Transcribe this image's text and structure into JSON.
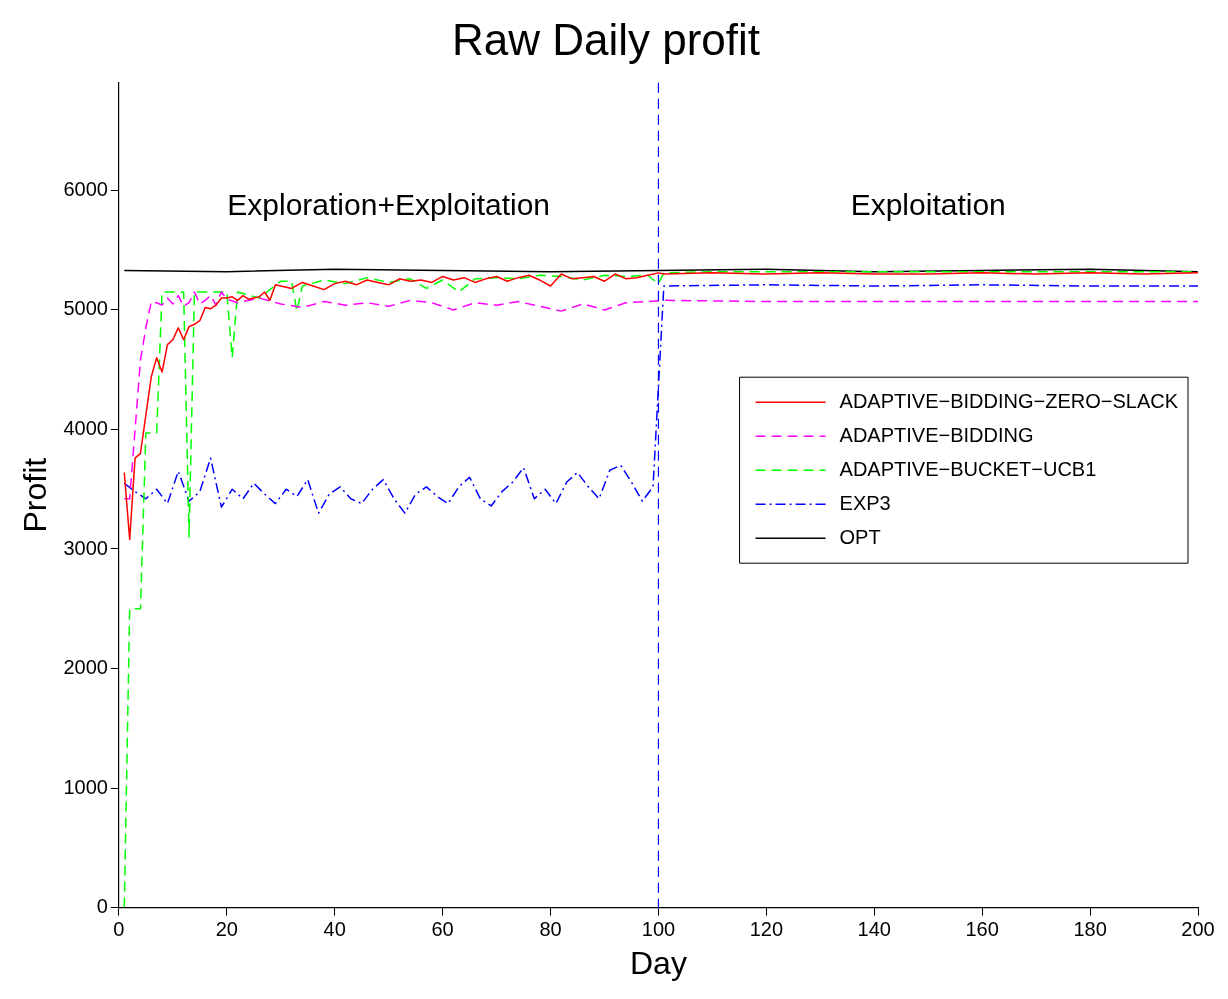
{
  "chart_data": {
    "type": "line",
    "title": "Raw Daily profit",
    "xlabel": "Day",
    "ylabel": "Profit",
    "xlim": [
      0,
      200
    ],
    "xticks": [
      0,
      20,
      40,
      60,
      80,
      100,
      120,
      140,
      160,
      180,
      200
    ],
    "ylim": [
      0,
      6900
    ],
    "yticks": [
      0,
      1000,
      2000,
      3000,
      4000,
      5000,
      6000
    ],
    "grid": false,
    "legend": "right",
    "marker": "none",
    "ref_lines": [
      {
        "axis": "x",
        "value": 100,
        "color": "#0000ff",
        "line_style": "dashed"
      }
    ],
    "annotations": [
      "Exploration+Exploitation",
      "Exploitation"
    ],
    "series": [
      {
        "name": "ADAPTIVE−BIDDING−ZERO−SLACK",
        "color": "#ff0000",
        "line_style": "solid",
        "x": [
          1,
          2,
          3,
          4,
          5,
          6,
          7,
          8,
          9,
          10,
          11,
          12,
          13,
          14,
          15,
          16,
          17,
          18,
          19,
          20,
          21,
          22,
          23,
          24,
          25,
          26,
          27,
          28,
          29,
          30,
          32,
          34,
          36,
          38,
          40,
          42,
          44,
          46,
          48,
          50,
          52,
          54,
          56,
          58,
          60,
          62,
          64,
          66,
          68,
          70,
          72,
          74,
          76,
          78,
          80,
          82,
          84,
          86,
          88,
          90,
          92,
          94,
          96,
          98,
          100,
          101,
          110,
          120,
          130,
          140,
          150,
          160,
          170,
          180,
          190,
          200
        ],
        "values": [
          3640,
          3080,
          3760,
          3800,
          4120,
          4440,
          4600,
          4480,
          4710,
          4750,
          4850,
          4750,
          4860,
          4880,
          4910,
          5020,
          5010,
          5040,
          5100,
          5100,
          5110,
          5080,
          5120,
          5090,
          5100,
          5110,
          5150,
          5080,
          5210,
          5200,
          5180,
          5230,
          5200,
          5170,
          5220,
          5240,
          5210,
          5250,
          5230,
          5210,
          5260,
          5240,
          5250,
          5230,
          5280,
          5250,
          5270,
          5230,
          5260,
          5280,
          5240,
          5270,
          5290,
          5250,
          5200,
          5300,
          5260,
          5270,
          5280,
          5240,
          5300,
          5260,
          5270,
          5290,
          5310,
          5300,
          5310,
          5300,
          5310,
          5300,
          5300,
          5310,
          5300,
          5310,
          5300,
          5310
        ]
      },
      {
        "name": "ADAPTIVE−BIDDING",
        "color": "#ff00ff",
        "line_style": "dashed",
        "x": [
          1,
          2,
          3,
          4,
          5,
          6,
          7,
          8,
          9,
          10,
          11,
          12,
          13,
          14,
          15,
          16,
          17,
          18,
          19,
          20,
          22,
          26,
          30,
          34,
          38,
          42,
          46,
          50,
          54,
          58,
          62,
          66,
          70,
          74,
          78,
          82,
          86,
          90,
          94,
          98,
          101,
          120,
          140,
          160,
          180,
          200
        ],
        "values": [
          3420,
          3420,
          4000,
          4580,
          4850,
          5070,
          5060,
          5040,
          5100,
          5050,
          5120,
          5030,
          5060,
          5150,
          5050,
          5080,
          5120,
          5040,
          5150,
          5090,
          5060,
          5100,
          5050,
          5020,
          5070,
          5040,
          5060,
          5030,
          5080,
          5060,
          5000,
          5060,
          5040,
          5070,
          5030,
          4990,
          5050,
          5000,
          5060,
          5070,
          5080,
          5070,
          5070,
          5070,
          5070,
          5070
        ]
      },
      {
        "name": "ADAPTIVE−BUCKET−UCB1",
        "color": "#00ff00",
        "line_style": "dashed",
        "x": [
          1,
          2,
          4,
          5,
          7,
          8,
          12,
          13,
          14,
          20,
          21,
          22,
          26,
          30,
          32,
          33,
          34,
          38,
          42,
          46,
          50,
          54,
          57,
          60,
          63,
          66,
          70,
          74,
          78,
          82,
          86,
          90,
          94,
          98,
          100,
          101,
          110,
          120,
          140,
          160,
          180,
          200
        ],
        "values": [
          0,
          2500,
          2500,
          3970,
          3970,
          5150,
          5150,
          3100,
          5150,
          5150,
          4600,
          5150,
          5100,
          5240,
          5240,
          4990,
          5200,
          5250,
          5220,
          5270,
          5230,
          5260,
          5180,
          5250,
          5150,
          5260,
          5270,
          5260,
          5290,
          5280,
          5250,
          5290,
          5280,
          5290,
          5220,
          5310,
          5320,
          5320,
          5320,
          5320,
          5320,
          5320
        ]
      },
      {
        "name": "EXP3",
        "color": "#0000ff",
        "line_style": "dashdot",
        "x": [
          1,
          3,
          5,
          7,
          9,
          11,
          13,
          15,
          17,
          19,
          21,
          23,
          25,
          27,
          29,
          31,
          33,
          35,
          37,
          39,
          41,
          43,
          45,
          47,
          49,
          51,
          53,
          55,
          57,
          59,
          61,
          63,
          65,
          67,
          69,
          71,
          73,
          75,
          77,
          79,
          81,
          83,
          85,
          87,
          89,
          91,
          93,
          95,
          97,
          99,
          101,
          120,
          140,
          160,
          180,
          200
        ],
        "values": [
          3550,
          3480,
          3420,
          3500,
          3380,
          3650,
          3400,
          3480,
          3760,
          3350,
          3500,
          3420,
          3550,
          3460,
          3380,
          3500,
          3440,
          3580,
          3300,
          3460,
          3520,
          3420,
          3380,
          3500,
          3580,
          3420,
          3300,
          3460,
          3520,
          3440,
          3380,
          3520,
          3600,
          3420,
          3360,
          3480,
          3560,
          3680,
          3420,
          3500,
          3380,
          3560,
          3640,
          3520,
          3420,
          3660,
          3700,
          3560,
          3400,
          3520,
          5200,
          5210,
          5200,
          5210,
          5200,
          5200
        ]
      },
      {
        "name": "OPT",
        "color": "#000000",
        "line_style": "solid",
        "x": [
          1,
          20,
          40,
          60,
          80,
          100,
          120,
          140,
          160,
          180,
          200
        ],
        "values": [
          5330,
          5320,
          5340,
          5330,
          5320,
          5330,
          5340,
          5320,
          5330,
          5340,
          5320
        ]
      }
    ]
  }
}
